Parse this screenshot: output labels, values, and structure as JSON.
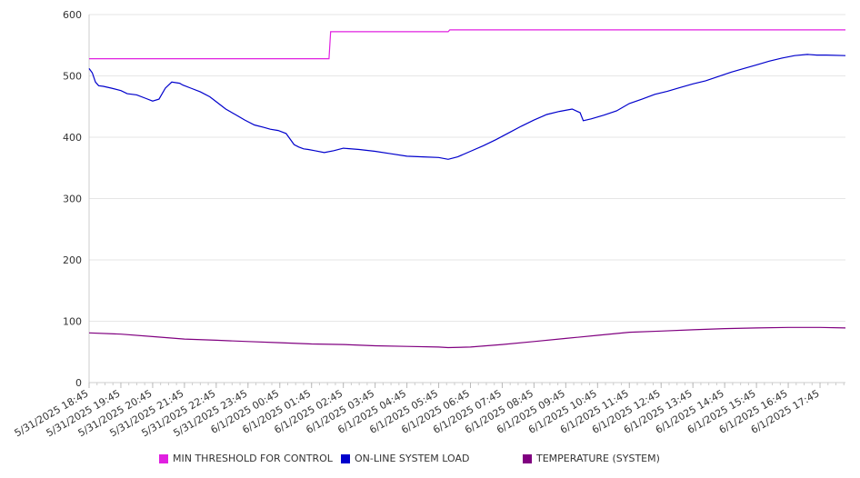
{
  "chart_data": {
    "type": "line",
    "title": "",
    "xlabel": "",
    "ylabel": "",
    "ylim": [
      0,
      600
    ],
    "yticks": [
      0,
      100,
      200,
      300,
      400,
      500,
      600
    ],
    "grid": true,
    "legend_position": "bottom",
    "x_ticks": [
      "5/31/2025 18:45",
      "5/31/2025 19:45",
      "5/31/2025 20:45",
      "5/31/2025 21:45",
      "5/31/2025 22:45",
      "5/31/2025 23:45",
      "6/1/2025 00:45",
      "6/1/2025 01:45",
      "6/1/2025 02:45",
      "6/1/2025 03:45",
      "6/1/2025 04:45",
      "6/1/2025 05:45",
      "6/1/2025 06:45",
      "6/1/2025 07:45",
      "6/1/2025 08:45",
      "6/1/2025 09:45",
      "6/1/2025 10:45",
      "6/1/2025 11:45",
      "6/1/2025 12:45",
      "6/1/2025 13:45",
      "6/1/2025 14:45",
      "6/1/2025 15:45",
      "6/1/2025 16:45",
      "6/1/2025 17:45"
    ],
    "series": [
      {
        "name": "MIN THRESHOLD FOR CONTROL",
        "color": "#e020e0",
        "x": [
          0,
          7.55,
          7.6,
          11.3,
          11.35,
          23.8
        ],
        "values": [
          528,
          528,
          572,
          572,
          575,
          575
        ]
      },
      {
        "name": "ON-LINE SYSTEM LOAD",
        "color": "#0000cc",
        "x": [
          0,
          0.1,
          0.2,
          0.3,
          0.45,
          0.7,
          1.0,
          1.2,
          1.5,
          1.8,
          2.0,
          2.2,
          2.4,
          2.6,
          2.85,
          2.95,
          3.2,
          3.5,
          3.8,
          4.0,
          4.3,
          4.6,
          4.9,
          5.2,
          5.5,
          5.7,
          5.95,
          6.2,
          6.45,
          6.6,
          6.75,
          6.9,
          7.1,
          7.4,
          7.7,
          8.0,
          8.5,
          9.0,
          9.5,
          10.0,
          10.5,
          11.0,
          11.3,
          11.6,
          12.0,
          12.4,
          12.8,
          13.2,
          13.6,
          14.0,
          14.4,
          14.8,
          15.2,
          15.45,
          15.55,
          15.8,
          16.2,
          16.6,
          17.0,
          17.4,
          17.8,
          18.2,
          18.6,
          19.0,
          19.4,
          19.8,
          20.2,
          20.6,
          21.0,
          21.4,
          21.8,
          22.2,
          22.6,
          22.9,
          23.2,
          23.8
        ],
        "values": [
          512,
          505,
          490,
          484,
          483,
          480,
          476,
          471,
          469,
          463,
          459,
          462,
          480,
          490,
          488,
          485,
          480,
          474,
          466,
          458,
          446,
          437,
          428,
          420,
          416,
          413,
          411,
          406,
          388,
          384,
          381,
          380,
          378,
          375,
          378,
          382,
          380,
          377,
          373,
          369,
          368,
          367,
          364,
          368,
          377,
          386,
          396,
          407,
          418,
          428,
          437,
          442,
          446,
          440,
          427,
          430,
          436,
          443,
          455,
          462,
          470,
          475,
          481,
          487,
          492,
          499,
          506,
          512,
          518,
          524,
          529,
          533,
          535,
          534,
          534,
          533
        ]
      },
      {
        "name": "TEMPERATURE (SYSTEM)",
        "color": "#800080",
        "x": [
          0,
          1,
          2,
          3,
          4,
          5,
          6,
          7,
          8,
          9,
          10,
          11,
          11.3,
          12,
          13,
          14,
          15,
          16,
          17,
          18,
          19,
          20,
          21,
          22,
          23,
          23.8
        ],
        "values": [
          81,
          79,
          75,
          71,
          69,
          67,
          65,
          63,
          62,
          60,
          59,
          58,
          57,
          58,
          62,
          67,
          72,
          77,
          82,
          84,
          86,
          88,
          89,
          90,
          90,
          89
        ]
      }
    ]
  }
}
